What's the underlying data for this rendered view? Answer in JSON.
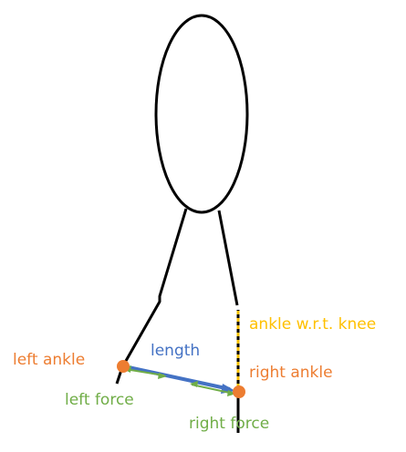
{
  "labels": {
    "left_ankle": "left ankle",
    "length": "length",
    "left_force": "left force",
    "ankle_wrt_knee": "ankle w.r.t. knee",
    "right_ankle": "right ankle",
    "right_force": "right force"
  },
  "colors": {
    "stroke": "#000000",
    "orange": "#ED7D31",
    "blue": "#4472C4",
    "green": "#70AD47",
    "yellow": "#FFC000"
  }
}
